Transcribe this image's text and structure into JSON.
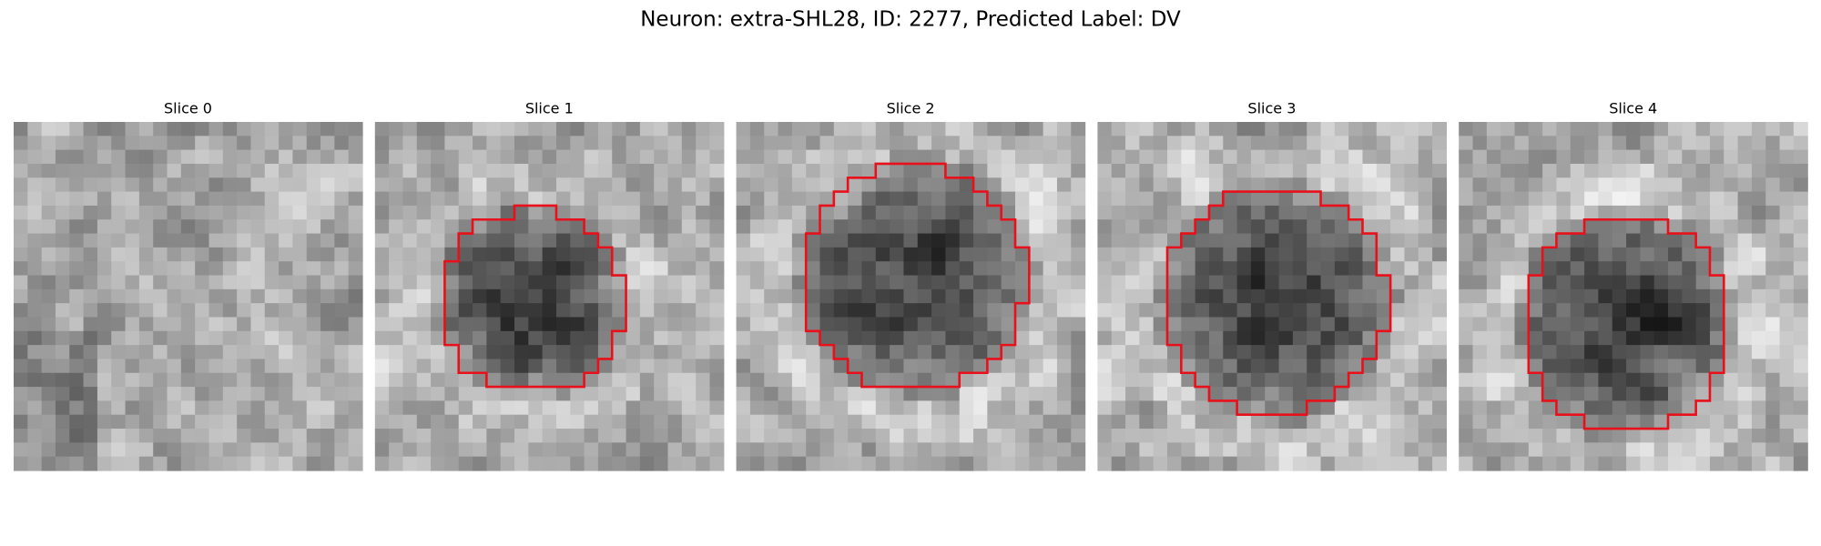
{
  "title": "Neuron: extra-SHL28, ID: 2277, Predicted Label: DV",
  "panels": [
    {
      "title": "Slice 0"
    },
    {
      "title": "Slice 1"
    },
    {
      "title": "Slice 2"
    },
    {
      "title": "Slice 3"
    },
    {
      "title": "Slice 4"
    }
  ]
}
